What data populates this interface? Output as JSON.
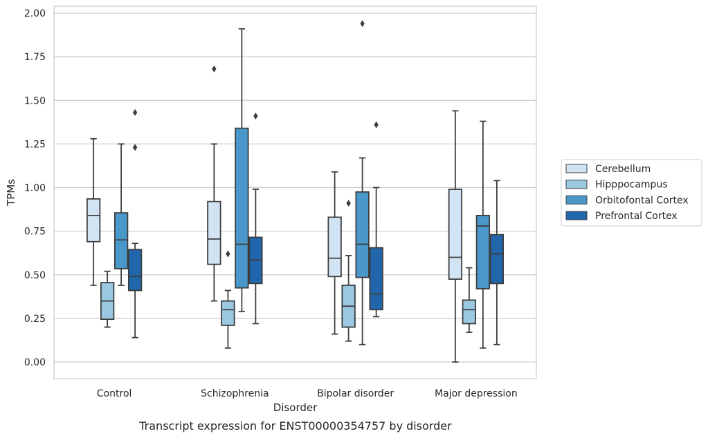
{
  "chart_data": {
    "type": "boxplot",
    "caption": "Transcript expression for ENST00000354757 by disorder",
    "xlabel": "Disorder",
    "ylabel": "TPMs",
    "ylim": [
      -0.1,
      2.03
    ],
    "yticks": [
      "0.00",
      "0.25",
      "0.50",
      "0.75",
      "1.00",
      "1.25",
      "1.50",
      "1.75",
      "2.00"
    ],
    "ytick_values": [
      0,
      0.25,
      0.5,
      0.75,
      1.0,
      1.25,
      1.5,
      1.75,
      2.0
    ],
    "grid": true,
    "legend_position": "right",
    "categories": [
      "Control",
      "Schizophrenia",
      "Bipolar disorder",
      "Major depression"
    ],
    "series": [
      {
        "name": "Cerebellum",
        "color": "#d2e3f3",
        "boxes": [
          {
            "whislo": 0.44,
            "q1": 0.69,
            "med": 0.84,
            "q3": 0.935,
            "whishi": 1.28,
            "fliers": []
          },
          {
            "whislo": 0.35,
            "q1": 0.56,
            "med": 0.705,
            "q3": 0.92,
            "whishi": 1.25,
            "fliers": [
              1.68
            ]
          },
          {
            "whislo": 0.16,
            "q1": 0.49,
            "med": 0.595,
            "q3": 0.83,
            "whishi": 1.09,
            "fliers": []
          },
          {
            "whislo": 0.0,
            "q1": 0.475,
            "med": 0.6,
            "q3": 0.99,
            "whishi": 1.44,
            "fliers": []
          }
        ]
      },
      {
        "name": "Hipppocampus",
        "color": "#9ac8e0",
        "boxes": [
          {
            "whislo": 0.2,
            "q1": 0.245,
            "med": 0.35,
            "q3": 0.455,
            "whishi": 0.52,
            "fliers": []
          },
          {
            "whislo": 0.08,
            "q1": 0.21,
            "med": 0.3,
            "q3": 0.35,
            "whishi": 0.41,
            "fliers": [
              0.62
            ]
          },
          {
            "whislo": 0.12,
            "q1": 0.2,
            "med": 0.32,
            "q3": 0.44,
            "whishi": 0.61,
            "fliers": [
              0.91
            ]
          },
          {
            "whislo": 0.17,
            "q1": 0.22,
            "med": 0.3,
            "q3": 0.355,
            "whishi": 0.54,
            "fliers": []
          }
        ]
      },
      {
        "name": "Orbitofontal Cortex",
        "color": "#4a98c9",
        "boxes": [
          {
            "whislo": 0.44,
            "q1": 0.535,
            "med": 0.7,
            "q3": 0.855,
            "whishi": 1.25,
            "fliers": []
          },
          {
            "whislo": 0.29,
            "q1": 0.425,
            "med": 0.675,
            "q3": 1.34,
            "whishi": 1.91,
            "fliers": []
          },
          {
            "whislo": 0.1,
            "q1": 0.485,
            "med": 0.675,
            "q3": 0.975,
            "whishi": 1.17,
            "fliers": [
              1.94
            ]
          },
          {
            "whislo": 0.08,
            "q1": 0.42,
            "med": 0.78,
            "q3": 0.84,
            "whishi": 1.38,
            "fliers": []
          }
        ]
      },
      {
        "name": "Prefrontal Cortex",
        "color": "#2165ab",
        "boxes": [
          {
            "whislo": 0.14,
            "q1": 0.41,
            "med": 0.49,
            "q3": 0.645,
            "whishi": 0.68,
            "fliers": [
              1.23,
              1.43
            ]
          },
          {
            "whislo": 0.22,
            "q1": 0.45,
            "med": 0.585,
            "q3": 0.715,
            "whishi": 0.99,
            "fliers": [
              1.41
            ]
          },
          {
            "whislo": 0.26,
            "q1": 0.3,
            "med": 0.39,
            "q3": 0.655,
            "whishi": 1.0,
            "fliers": [
              1.36
            ]
          },
          {
            "whislo": 0.1,
            "q1": 0.45,
            "med": 0.62,
            "q3": 0.73,
            "whishi": 1.04,
            "fliers": []
          }
        ]
      }
    ]
  }
}
